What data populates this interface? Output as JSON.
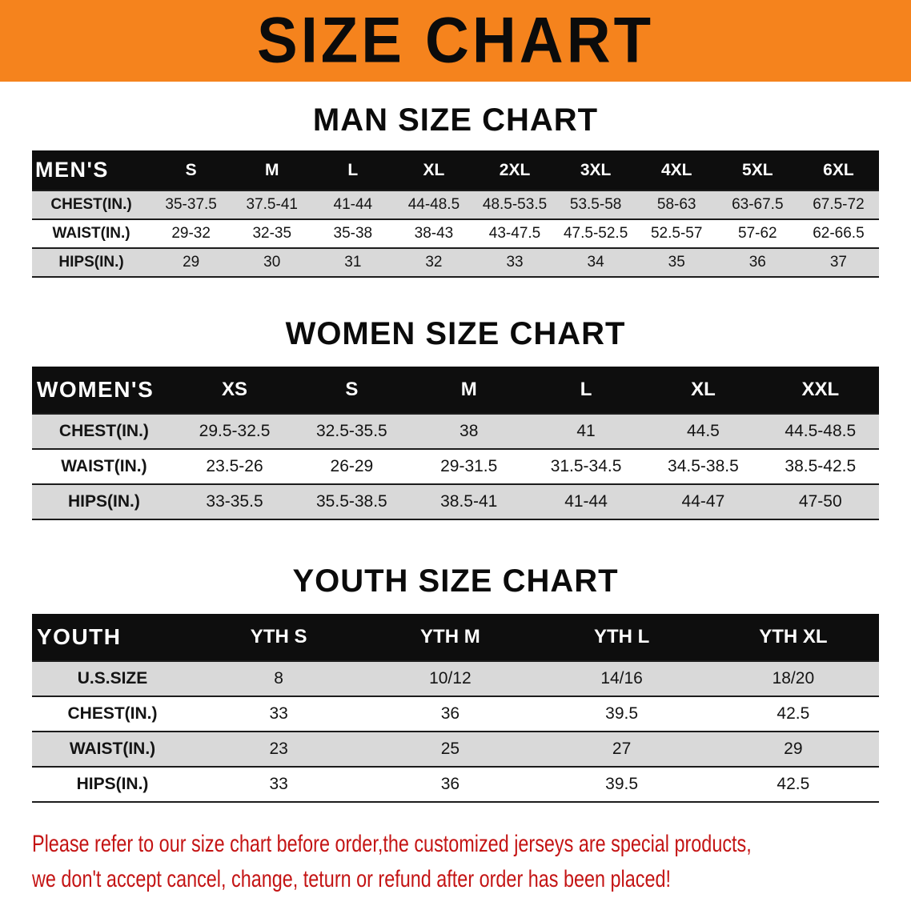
{
  "banner": {
    "title": "SIZE CHART"
  },
  "colors": {
    "banner_bg": "#f5831d",
    "table_header_bg": "#0e0e0e",
    "row_alt_bg": "#d9d9d9",
    "disclaimer_text": "#c41414"
  },
  "men": {
    "section_title": "MAN SIZE CHART",
    "header": [
      "MEN'S",
      "S",
      "M",
      "L",
      "XL",
      "2XL",
      "3XL",
      "4XL",
      "5XL",
      "6XL"
    ],
    "rows": [
      {
        "label": "CHEST(IN.)",
        "values": [
          "35-37.5",
          "37.5-41",
          "41-44",
          "44-48.5",
          "48.5-53.5",
          "53.5-58",
          "58-63",
          "63-67.5",
          "67.5-72"
        ]
      },
      {
        "label": "WAIST(IN.)",
        "values": [
          "29-32",
          "32-35",
          "35-38",
          "38-43",
          "43-47.5",
          "47.5-52.5",
          "52.5-57",
          "57-62",
          "62-66.5"
        ]
      },
      {
        "label": "HIPS(IN.)",
        "values": [
          "29",
          "30",
          "31",
          "32",
          "33",
          "34",
          "35",
          "36",
          "37"
        ]
      }
    ]
  },
  "women": {
    "section_title": "WOMEN SIZE CHART",
    "header": [
      "WOMEN'S",
      "XS",
      "S",
      "M",
      "L",
      "XL",
      "XXL"
    ],
    "rows": [
      {
        "label": "CHEST(IN.)",
        "values": [
          "29.5-32.5",
          "32.5-35.5",
          "38",
          "41",
          "44.5",
          "44.5-48.5"
        ]
      },
      {
        "label": "WAIST(IN.)",
        "values": [
          "23.5-26",
          "26-29",
          "29-31.5",
          "31.5-34.5",
          "34.5-38.5",
          "38.5-42.5"
        ]
      },
      {
        "label": "HIPS(IN.)",
        "values": [
          "33-35.5",
          "35.5-38.5",
          "38.5-41",
          "41-44",
          "44-47",
          "47-50"
        ]
      }
    ]
  },
  "youth": {
    "section_title": "YOUTH SIZE CHART",
    "header": [
      "YOUTH",
      "YTH S",
      "YTH M",
      "YTH L",
      "YTH XL"
    ],
    "rows": [
      {
        "label": "U.S.SIZE",
        "values": [
          "8",
          "10/12",
          "14/16",
          "18/20"
        ]
      },
      {
        "label": "CHEST(IN.)",
        "values": [
          "33",
          "36",
          "39.5",
          "42.5"
        ]
      },
      {
        "label": "WAIST(IN.)",
        "values": [
          "23",
          "25",
          "27",
          "29"
        ]
      },
      {
        "label": "HIPS(IN.)",
        "values": [
          "33",
          "36",
          "39.5",
          "42.5"
        ]
      }
    ]
  },
  "disclaimer": {
    "line1": "Please refer to our size chart before order,the customized jerseys are special products,",
    "line2": "we don't accept cancel, change, teturn or refund after order has been placed!"
  }
}
